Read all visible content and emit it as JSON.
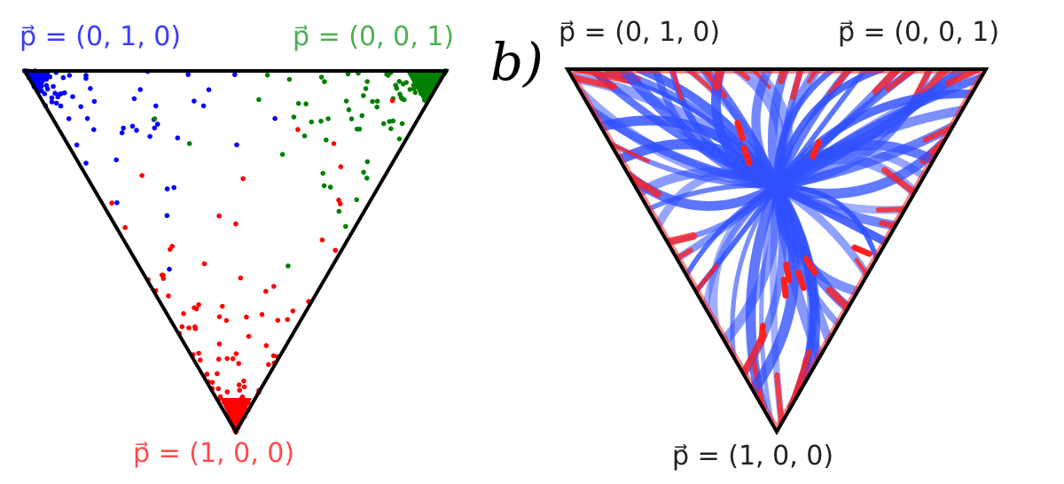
{
  "panel_b_letter": "b)",
  "left_panel": {
    "labels": {
      "top_left": "p⃗ = (0, 1, 0)",
      "top_right": "p⃗ = (0, 0, 1)",
      "bottom": "p⃗ = (1, 0, 0)"
    },
    "colors": {
      "vertex_010": "#0000ff",
      "vertex_001": "#008000",
      "vertex_100": "#ff0000"
    }
  },
  "right_panel": {
    "labels": {
      "top_left": "p⃗ = (0, 1, 0)",
      "top_right": "p⃗ = (0, 0, 1)",
      "bottom": "p⃗ = (1, 0, 0)"
    },
    "colors": {
      "flow_blue": "#3050ff",
      "flow_red": "#ff2020"
    }
  }
}
